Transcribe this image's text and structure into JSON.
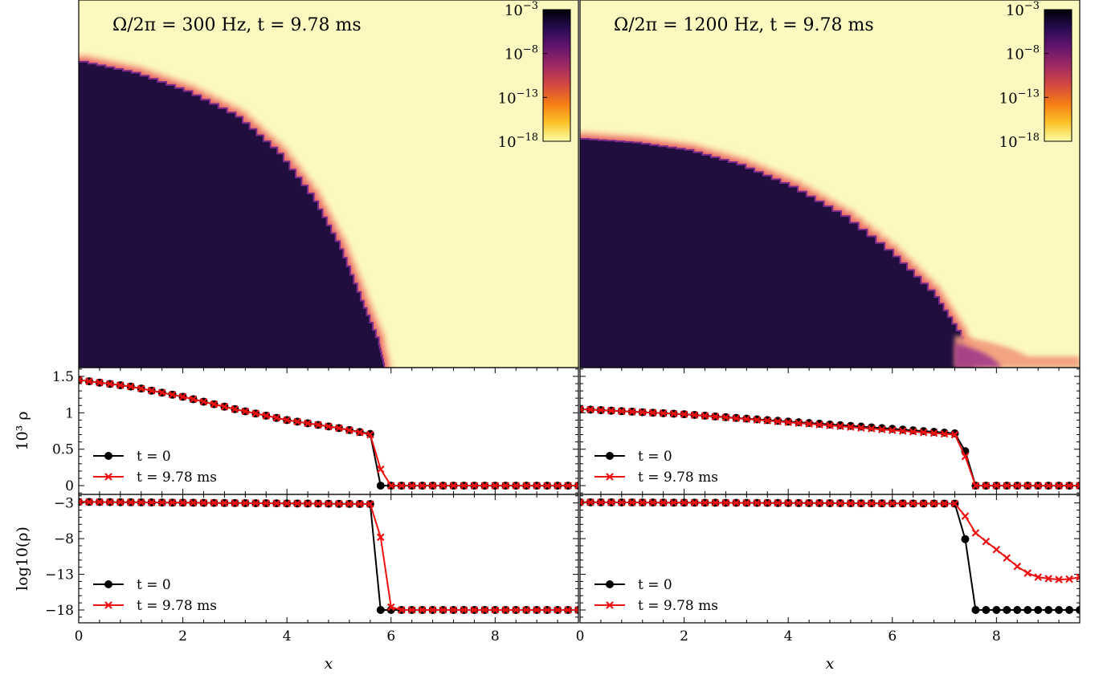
{
  "colors": {
    "background_low": "#fbf9c0",
    "dark_interior": "#200e3f",
    "colormap_stops": [
      "#fcffa4",
      "#fac228",
      "#f57d15",
      "#d44842",
      "#9f2a63",
      "#65156e",
      "#280b53",
      "#000004"
    ],
    "t0_series": "#000000",
    "t978_series": "#ee1111"
  },
  "chart_data": [
    {
      "type": "heatmap",
      "panel": "top-left",
      "title": "Ω/2π = 300 Hz, t = 9.78 ms",
      "color_scale": "log",
      "colorbar": {
        "placement": "top-right (inset)",
        "range_log10": [
          -18,
          -3
        ],
        "tick_values": [
          -3,
          -8,
          -13,
          -18
        ],
        "tick_labels": [
          "10−3",
          "10−8",
          "10−13",
          "10−18"
        ]
      },
      "x_extent": [
        0,
        9.6
      ],
      "boundary_profile": {
        "description": "Dense star interior (log10 rho ≈ -3) bounded by a jagged surface; exterior at floor (log10 rho ≈ -18).",
        "x": [
          0.0,
          1.0,
          2.0,
          3.0,
          3.8,
          4.5,
          5.0,
          5.4,
          5.75,
          5.85
        ],
        "height_fraction": [
          0.83,
          0.8,
          0.75,
          0.68,
          0.58,
          0.45,
          0.32,
          0.18,
          0.06,
          0.0
        ]
      }
    },
    {
      "type": "heatmap",
      "panel": "top-right",
      "title": "Ω/2π = 1200 Hz, t = 9.78 ms",
      "color_scale": "log",
      "colorbar": {
        "placement": "top-right (inset)",
        "range_log10": [
          -18,
          -3
        ],
        "tick_values": [
          -3,
          -8,
          -13,
          -18
        ],
        "tick_labels": [
          "10−3",
          "10−8",
          "10−13",
          "10−18"
        ]
      },
      "x_extent": [
        0,
        9.6
      ],
      "boundary_profile": {
        "description": "Flattened, rapidly rotating star; smooth extended low-density halo near the equator.",
        "x": [
          0.0,
          1.0,
          2.0,
          3.0,
          4.0,
          5.0,
          6.0,
          6.8,
          7.3,
          7.55
        ],
        "height_fraction": [
          0.62,
          0.61,
          0.59,
          0.55,
          0.49,
          0.41,
          0.3,
          0.19,
          0.08,
          0.0
        ]
      }
    },
    {
      "type": "line",
      "panel": "middle-left",
      "ylabel": "10³ ρ",
      "ylim": [
        -0.12,
        1.62
      ],
      "yticks": [
        0,
        0.5,
        1,
        1.5
      ],
      "ytick_labels": [
        "0",
        "0.5",
        "1",
        "1.5"
      ],
      "xlim": [
        0,
        9.6
      ],
      "legend": "lower-left",
      "series": [
        {
          "name": "t = 0",
          "marker": "circle",
          "color": "#000000",
          "x": [
            0,
            1,
            2,
            3,
            4,
            5,
            5.6,
            5.75,
            5.95,
            9.6
          ],
          "y": [
            1.45,
            1.36,
            1.22,
            1.05,
            0.9,
            0.79,
            0.71,
            0.0,
            0.0,
            0.0
          ]
        },
        {
          "name": "t = 9.78 ms",
          "marker": "x",
          "color": "#ee1111",
          "x": [
            0,
            1,
            2,
            3,
            4,
            5,
            5.6,
            5.75,
            5.95,
            9.6
          ],
          "y": [
            1.45,
            1.36,
            1.22,
            1.05,
            0.9,
            0.79,
            0.7,
            0.3,
            0.0,
            0.0
          ]
        }
      ]
    },
    {
      "type": "line",
      "panel": "middle-right",
      "ylim": [
        -0.12,
        1.62
      ],
      "xlim": [
        0,
        9.6
      ],
      "legend": "lower-left",
      "series": [
        {
          "name": "t = 0",
          "marker": "circle",
          "color": "#000000",
          "x": [
            0,
            2,
            4,
            6,
            7.35,
            7.5,
            7.65,
            9.6
          ],
          "y": [
            1.05,
            0.98,
            0.88,
            0.78,
            0.71,
            0.0,
            0.0,
            0.0
          ]
        },
        {
          "name": "t = 9.78 ms",
          "marker": "x",
          "color": "#ee1111",
          "x": [
            0,
            2,
            4,
            6,
            7.2,
            7.4,
            7.55,
            9.6
          ],
          "y": [
            1.05,
            0.98,
            0.87,
            0.76,
            0.7,
            0.4,
            0.0,
            0.0
          ]
        }
      ]
    },
    {
      "type": "line",
      "panel": "bottom-left",
      "ylabel": "log10(ρ)",
      "ylim": [
        -19.8,
        -1.8
      ],
      "yticks": [
        -3,
        -8,
        -13,
        -18
      ],
      "ytick_labels": [
        "−3",
        "−8",
        "−13",
        "−18"
      ],
      "xlim": [
        0,
        9.6
      ],
      "xticks": [
        0,
        2,
        4,
        6,
        8
      ],
      "xlabel": "x",
      "legend": "lower-left",
      "series": [
        {
          "name": "t = 0",
          "marker": "circle",
          "color": "#000000",
          "x": [
            0,
            5.6,
            5.75,
            9.6
          ],
          "y": [
            -2.85,
            -3.15,
            -18.0,
            -18.0
          ]
        },
        {
          "name": "t = 9.78 ms",
          "marker": "x",
          "color": "#ee1111",
          "x": [
            0,
            5.6,
            5.75,
            5.9,
            6.05,
            9.6
          ],
          "y": [
            -2.85,
            -3.15,
            -3.3,
            -16.8,
            -18.0,
            -18.0
          ]
        }
      ]
    },
    {
      "type": "line",
      "panel": "bottom-right",
      "ylim": [
        -19.8,
        -1.8
      ],
      "xlim": [
        0,
        9.6
      ],
      "xticks": [
        0,
        2,
        4,
        6,
        8
      ],
      "xlabel": "x",
      "legend": "lower-left",
      "series": [
        {
          "name": "t = 0",
          "marker": "circle",
          "color": "#000000",
          "x": [
            0,
            7.35,
            7.5,
            9.6
          ],
          "y": [
            -2.9,
            -3.1,
            -18.0,
            -18.0
          ]
        },
        {
          "name": "t = 9.78 ms",
          "marker": "x",
          "color": "#ee1111",
          "x": [
            0,
            7.3,
            7.5,
            7.8,
            8.1,
            8.4,
            8.7,
            9.0,
            9.3,
            9.6
          ],
          "y": [
            -2.9,
            -3.1,
            -6.6,
            -8.4,
            -10.1,
            -11.9,
            -13.3,
            -13.6,
            -13.8,
            -13.4
          ]
        }
      ]
    }
  ]
}
